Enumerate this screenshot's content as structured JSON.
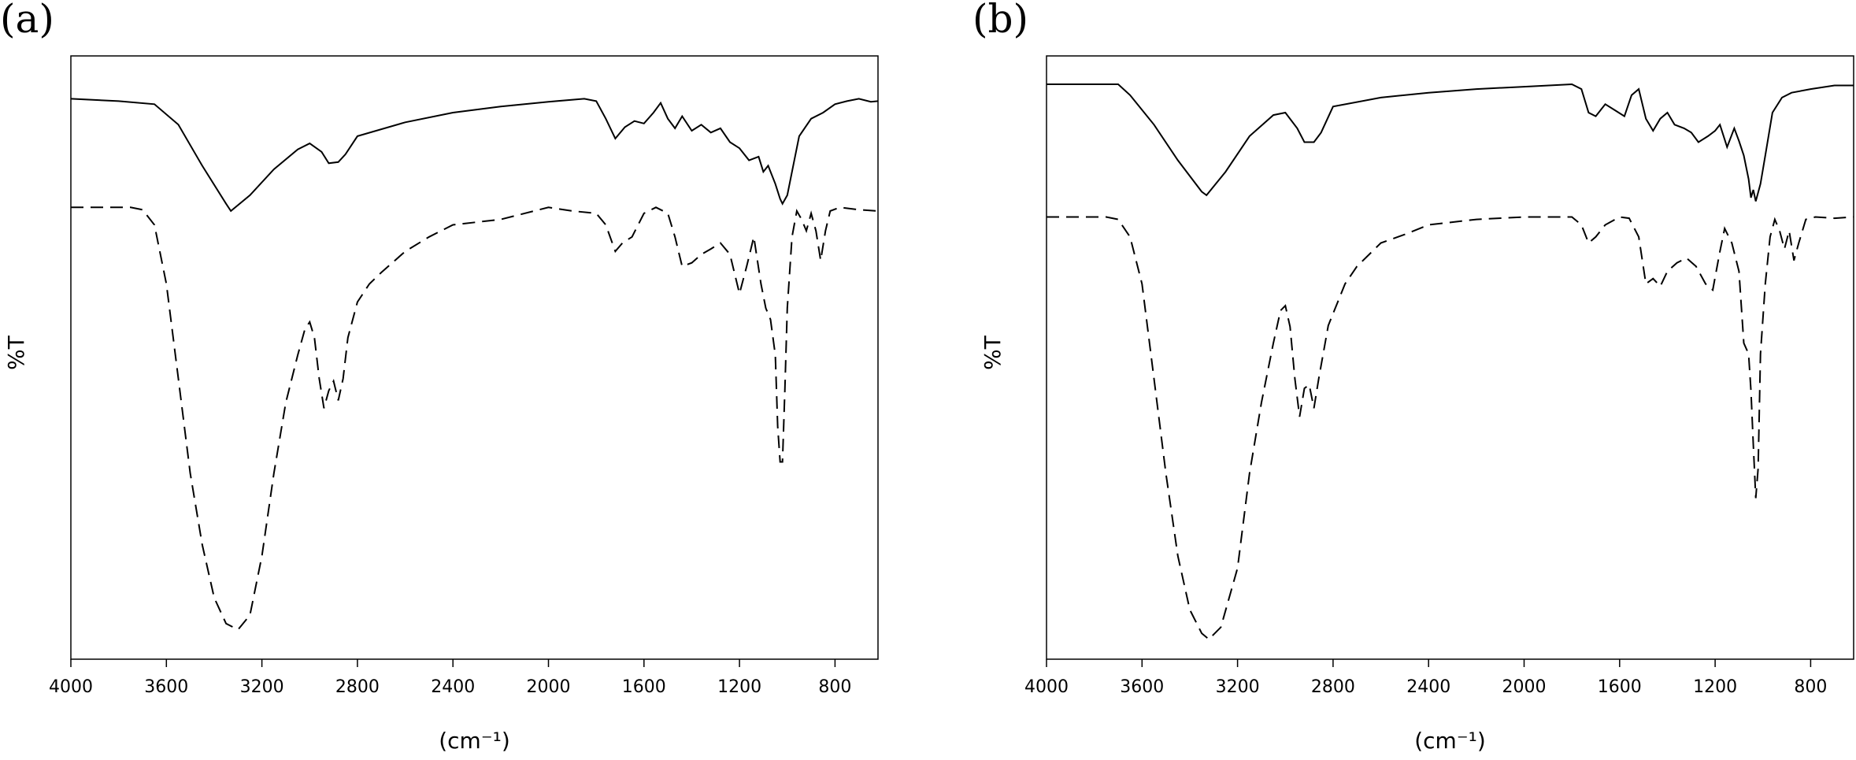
{
  "chart_data": [
    {
      "type": "line",
      "title": "(a)",
      "xlabel": "(cm⁻¹)",
      "ylabel": "%T",
      "xlim": [
        4000,
        620
      ],
      "ylim": [
        0,
        100
      ],
      "xticks": [
        4000,
        3600,
        3200,
        2800,
        2400,
        2000,
        1600,
        1200,
        800
      ],
      "series": [
        {
          "color": "#000000",
          "line_style": "solid",
          "x": [
            4000,
            3800,
            3650,
            3550,
            3450,
            3350,
            3330,
            3250,
            3150,
            3050,
            3000,
            2950,
            2920,
            2880,
            2850,
            2800,
            2600,
            2400,
            2200,
            2000,
            1850,
            1800,
            1760,
            1720,
            1680,
            1640,
            1600,
            1560,
            1530,
            1500,
            1470,
            1440,
            1400,
            1360,
            1320,
            1280,
            1240,
            1200,
            1160,
            1120,
            1100,
            1080,
            1050,
            1030,
            1020,
            1000,
            980,
            950,
            900,
            850,
            800,
            750,
            700,
            650,
            620
          ],
          "values": [
            92.9,
            92.5,
            92.0,
            88.6,
            81.8,
            75.5,
            74.3,
            76.9,
            81.2,
            84.5,
            85.5,
            84.1,
            82.2,
            82.4,
            83.7,
            86.7,
            89.0,
            90.6,
            91.6,
            92.4,
            92.9,
            92.5,
            89.6,
            86.3,
            88.2,
            89.2,
            88.8,
            90.6,
            92.2,
            89.6,
            88.0,
            90.0,
            87.6,
            88.6,
            87.3,
            88.0,
            85.7,
            84.7,
            82.7,
            83.3,
            80.8,
            81.8,
            78.8,
            76.3,
            75.5,
            76.9,
            80.8,
            86.7,
            89.6,
            90.6,
            92.0,
            92.5,
            92.9,
            92.4,
            92.5
          ]
        },
        {
          "color": "#000000",
          "line_style": "dashed",
          "x": [
            4000,
            3750,
            3700,
            3650,
            3600,
            3550,
            3500,
            3450,
            3400,
            3350,
            3300,
            3250,
            3200,
            3150,
            3100,
            3050,
            3020,
            3000,
            2980,
            2960,
            2940,
            2920,
            2900,
            2880,
            2860,
            2840,
            2800,
            2750,
            2700,
            2600,
            2500,
            2400,
            2200,
            2000,
            1900,
            1800,
            1760,
            1720,
            1690,
            1650,
            1600,
            1550,
            1500,
            1470,
            1440,
            1400,
            1360,
            1320,
            1280,
            1240,
            1200,
            1170,
            1140,
            1110,
            1090,
            1070,
            1050,
            1040,
            1030,
            1020,
            1010,
            1000,
            980,
            960,
            940,
            920,
            900,
            880,
            860,
            840,
            820,
            780,
            700,
            620
          ],
          "values": [
            74.9,
            74.9,
            74.5,
            72.0,
            62.2,
            46.5,
            30.8,
            19.0,
            10.2,
            5.9,
            4.9,
            7.3,
            17.1,
            30.8,
            42.5,
            50.4,
            54.7,
            55.9,
            53.3,
            46.5,
            41.6,
            44.5,
            46.1,
            42.9,
            46.5,
            53.3,
            59.2,
            62.2,
            64.1,
            67.6,
            70.0,
            72.0,
            72.9,
            74.9,
            74.3,
            73.9,
            72.0,
            67.6,
            69.0,
            70.0,
            73.9,
            74.9,
            73.9,
            70.0,
            65.1,
            65.7,
            67.1,
            68.0,
            69.0,
            67.1,
            60.6,
            65.1,
            70.0,
            62.2,
            58.2,
            56.3,
            50.4,
            38.6,
            32.7,
            32.7,
            44.5,
            58.2,
            70.0,
            74.3,
            72.9,
            71.0,
            73.9,
            71.0,
            66.1,
            71.0,
            74.3,
            74.9,
            74.5,
            74.3
          ]
        }
      ]
    },
    {
      "type": "line",
      "title": "(b)",
      "xlabel": "(cm⁻¹)",
      "ylabel": "%T",
      "xlim": [
        4000,
        620
      ],
      "ylim": [
        0,
        100
      ],
      "xticks": [
        4000,
        3600,
        3200,
        2800,
        2400,
        2000,
        1600,
        1200,
        800
      ],
      "series": [
        {
          "color": "#000000",
          "line_style": "solid",
          "x": [
            4000,
            3700,
            3650,
            3550,
            3450,
            3350,
            3330,
            3250,
            3150,
            3050,
            3000,
            2950,
            2920,
            2880,
            2850,
            2800,
            2600,
            2400,
            2200,
            2000,
            1800,
            1760,
            1730,
            1700,
            1660,
            1620,
            1580,
            1550,
            1520,
            1490,
            1460,
            1430,
            1400,
            1370,
            1330,
            1300,
            1270,
            1230,
            1200,
            1180,
            1150,
            1120,
            1100,
            1080,
            1060,
            1050,
            1040,
            1030,
            1010,
            990,
            960,
            920,
            880,
            800,
            700,
            620
          ],
          "values": [
            95.3,
            95.3,
            93.5,
            88.6,
            82.7,
            77.5,
            76.9,
            80.8,
            86.7,
            90.2,
            90.6,
            88.0,
            85.7,
            85.7,
            87.3,
            91.6,
            93.1,
            93.9,
            94.5,
            94.9,
            95.3,
            94.5,
            90.6,
            90.0,
            92.0,
            91.0,
            90.0,
            93.5,
            94.5,
            89.6,
            87.6,
            89.6,
            90.6,
            88.6,
            88.0,
            87.3,
            85.7,
            86.7,
            87.6,
            88.6,
            84.9,
            88.0,
            85.9,
            83.5,
            79.6,
            76.5,
            77.8,
            75.9,
            78.8,
            83.5,
            90.6,
            93.1,
            93.9,
            94.5,
            95.1,
            95.1
          ]
        },
        {
          "color": "#000000",
          "line_style": "dashed",
          "x": [
            4000,
            3750,
            3700,
            3650,
            3600,
            3550,
            3500,
            3450,
            3400,
            3350,
            3320,
            3270,
            3200,
            3150,
            3100,
            3050,
            3020,
            3000,
            2980,
            2960,
            2940,
            2920,
            2900,
            2880,
            2860,
            2820,
            2750,
            2700,
            2600,
            2500,
            2400,
            2200,
            2000,
            1800,
            1760,
            1730,
            1700,
            1660,
            1600,
            1560,
            1520,
            1490,
            1460,
            1430,
            1400,
            1360,
            1320,
            1280,
            1240,
            1210,
            1180,
            1160,
            1130,
            1100,
            1080,
            1060,
            1050,
            1040,
            1030,
            1020,
            1010,
            990,
            970,
            950,
            930,
            910,
            890,
            870,
            850,
            820,
            780,
            700,
            620
          ],
          "values": [
            73.3,
            73.3,
            72.9,
            70.0,
            62.2,
            46.5,
            30.8,
            17.1,
            8.2,
            4.3,
            3.3,
            5.3,
            15.1,
            30.8,
            42.5,
            52.4,
            57.8,
            58.6,
            55.1,
            46.5,
            40.2,
            44.9,
            45.5,
            41.6,
            46.5,
            55.3,
            62.2,
            65.1,
            69.0,
            70.4,
            72.0,
            72.9,
            73.3,
            73.3,
            72.0,
            69.0,
            70.0,
            72.0,
            73.3,
            73.1,
            70.0,
            62.2,
            63.1,
            61.8,
            64.3,
            65.7,
            66.5,
            65.1,
            62.2,
            61.2,
            67.6,
            71.4,
            69.0,
            64.3,
            52.4,
            50.6,
            44.5,
            35.5,
            26.7,
            31.6,
            50.6,
            62.2,
            70.0,
            72.9,
            71.0,
            68.0,
            71.0,
            66.1,
            69.0,
            72.9,
            73.3,
            73.1,
            73.3
          ]
        }
      ]
    }
  ]
}
